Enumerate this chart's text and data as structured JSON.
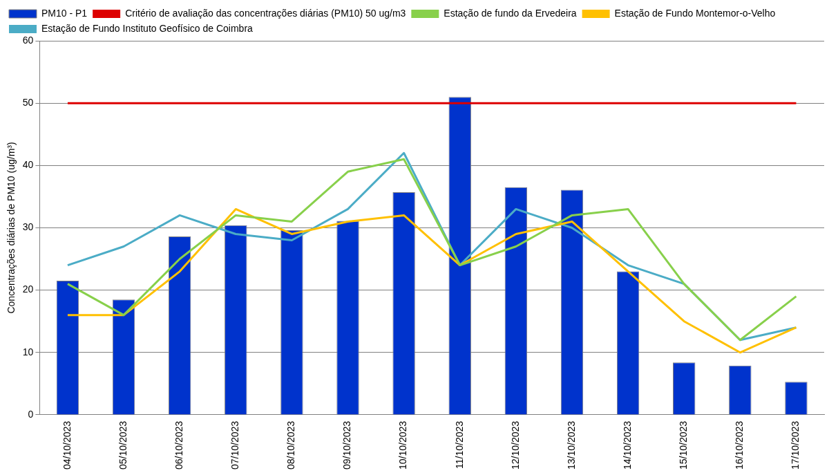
{
  "chart_data": {
    "type": "bar",
    "ylabel": "Concentrações diárias de PM10 (ug/m³)",
    "categories": [
      "04/10/2023",
      "05/10/2023",
      "06/10/2023",
      "07/10/2023",
      "08/10/2023",
      "09/10/2023",
      "10/10/2023",
      "11/10/2023",
      "12/10/2023",
      "13/10/2023",
      "14/10/2023",
      "15/10/2023",
      "16/10/2023",
      "17/10/2023"
    ],
    "series": [
      {
        "name": "PM10 - P1",
        "color": "#0033cc",
        "values": [
          21.5,
          18.5,
          28.6,
          30.4,
          29.6,
          31.1,
          35.7,
          51,
          36.5,
          36.1,
          23,
          8.4,
          7.9,
          5.3
        ]
      },
      {
        "name": "Critério de avaliação das concentrações diárias (PM10) 50 ug/m3",
        "type": "line",
        "color": "#dd0000",
        "values": [
          50,
          50,
          50,
          50,
          50,
          50,
          50,
          50,
          50,
          50,
          50,
          50,
          50,
          50
        ]
      },
      {
        "name": "Estação de fundo da Ervedeira",
        "type": "line",
        "color": "#88d04b",
        "values": [
          21,
          16,
          25,
          32,
          31,
          39,
          41,
          24,
          27,
          32,
          33,
          21,
          12,
          19
        ]
      },
      {
        "name": "Estação de Fundo Montemor-o-Velho",
        "type": "line",
        "color": "#ffc000",
        "values": [
          16,
          16,
          23,
          33,
          29,
          31,
          32,
          24,
          29,
          31,
          23,
          15,
          10,
          14
        ]
      },
      {
        "name": "Estação de Fundo Instituto Geofísico de Coimbra",
        "type": "line",
        "color": "#4bacc6",
        "values": [
          24,
          27,
          32,
          29,
          28,
          33,
          42,
          24,
          33,
          30,
          24,
          21,
          12,
          14
        ]
      }
    ],
    "ylim": [
      0,
      60
    ],
    "yticks": [
      0,
      10,
      20,
      30,
      40,
      50,
      60
    ],
    "grid": "y",
    "legend": "top",
    "marker": "none"
  }
}
